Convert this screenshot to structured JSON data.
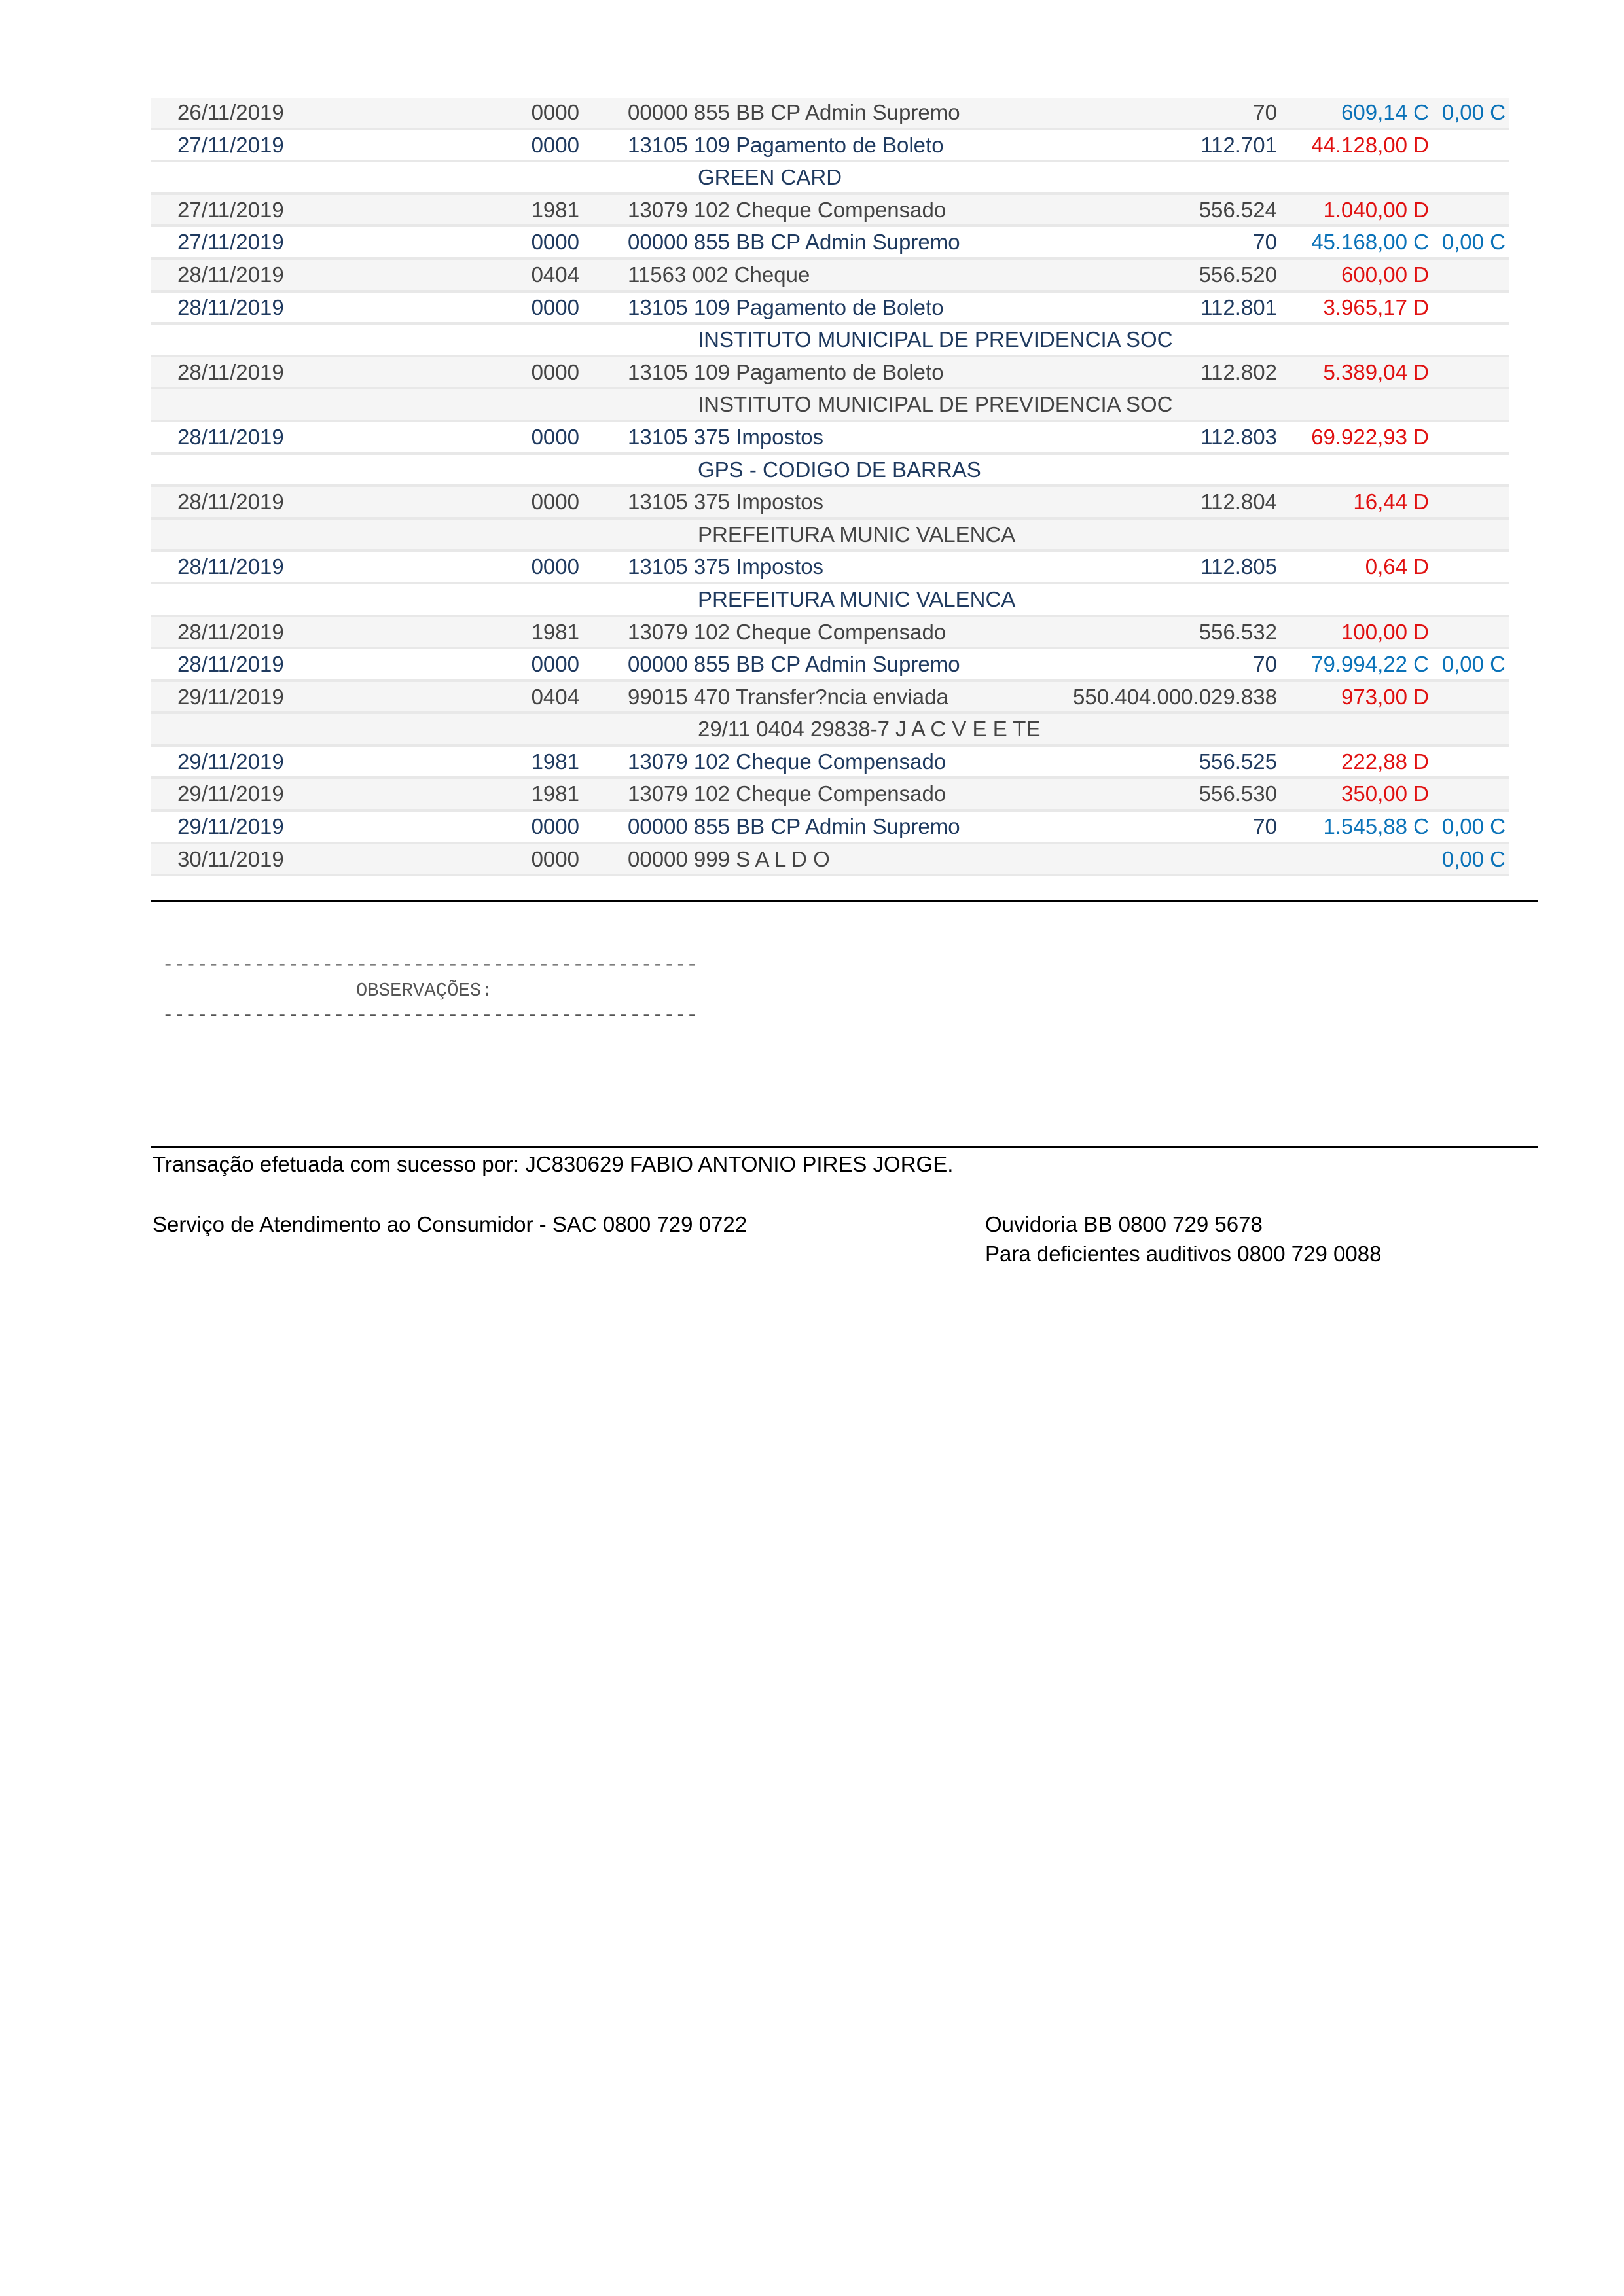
{
  "colors": {
    "debit": "#e01010",
    "credit": "#0a72b8",
    "text_navy": "#1f3a5f",
    "text_grey": "#444444"
  },
  "entries": [
    {
      "date": "26/11/2019",
      "doc": "0000",
      "history": "00000 855 BB CP Admin Supremo",
      "ref": "70",
      "amount": "609,14 C",
      "amount_type": "credit",
      "balance": "0,00 C",
      "sub": ""
    },
    {
      "date": "27/11/2019",
      "doc": "0000",
      "history": "13105 109 Pagamento de Boleto",
      "ref": "112.701",
      "amount": "44.128,00 D",
      "amount_type": "debit",
      "balance": "",
      "sub": "GREEN CARD"
    },
    {
      "date": "27/11/2019",
      "doc": "1981",
      "history": "13079 102 Cheque Compensado",
      "ref": "556.524",
      "amount": "1.040,00 D",
      "amount_type": "debit",
      "balance": "",
      "sub": ""
    },
    {
      "date": "27/11/2019",
      "doc": "0000",
      "history": "00000 855 BB CP Admin Supremo",
      "ref": "70",
      "amount": "45.168,00 C",
      "amount_type": "credit",
      "balance": "0,00 C",
      "sub": ""
    },
    {
      "date": "28/11/2019",
      "doc": "0404",
      "history": "11563 002 Cheque",
      "ref": "556.520",
      "amount": "600,00 D",
      "amount_type": "debit",
      "balance": "",
      "sub": ""
    },
    {
      "date": "28/11/2019",
      "doc": "0000",
      "history": "13105 109 Pagamento de Boleto",
      "ref": "112.801",
      "amount": "3.965,17 D",
      "amount_type": "debit",
      "balance": "",
      "sub": "INSTITUTO MUNICIPAL DE PREVIDENCIA SOC"
    },
    {
      "date": "28/11/2019",
      "doc": "0000",
      "history": "13105 109 Pagamento de Boleto",
      "ref": "112.802",
      "amount": "5.389,04 D",
      "amount_type": "debit",
      "balance": "",
      "sub": "INSTITUTO MUNICIPAL DE PREVIDENCIA SOC"
    },
    {
      "date": "28/11/2019",
      "doc": "0000",
      "history": "13105 375 Impostos",
      "ref": "112.803",
      "amount": "69.922,93 D",
      "amount_type": "debit",
      "balance": "",
      "sub": "GPS - CODIGO DE BARRAS"
    },
    {
      "date": "28/11/2019",
      "doc": "0000",
      "history": "13105 375 Impostos",
      "ref": "112.804",
      "amount": "16,44 D",
      "amount_type": "debit",
      "balance": "",
      "sub": "PREFEITURA MUNIC VALENCA"
    },
    {
      "date": "28/11/2019",
      "doc": "0000",
      "history": "13105 375 Impostos",
      "ref": "112.805",
      "amount": "0,64 D",
      "amount_type": "debit",
      "balance": "",
      "sub": "PREFEITURA MUNIC VALENCA"
    },
    {
      "date": "28/11/2019",
      "doc": "1981",
      "history": "13079 102 Cheque Compensado",
      "ref": "556.532",
      "amount": "100,00 D",
      "amount_type": "debit",
      "balance": "",
      "sub": ""
    },
    {
      "date": "28/11/2019",
      "doc": "0000",
      "history": "00000 855 BB CP Admin Supremo",
      "ref": "70",
      "amount": "79.994,22 C",
      "amount_type": "credit",
      "balance": "0,00 C",
      "sub": ""
    },
    {
      "date": "29/11/2019",
      "doc": "0404",
      "history": "99015 470 Transfer?ncia enviada",
      "ref": "550.404.000.029.838",
      "amount": "973,00 D",
      "amount_type": "debit",
      "balance": "",
      "sub": "29/11 0404 29838-7 J A C V E E TE"
    },
    {
      "date": "29/11/2019",
      "doc": "1981",
      "history": "13079 102 Cheque Compensado",
      "ref": "556.525",
      "amount": "222,88 D",
      "amount_type": "debit",
      "balance": "",
      "sub": ""
    },
    {
      "date": "29/11/2019",
      "doc": "1981",
      "history": "13079 102 Cheque Compensado",
      "ref": "556.530",
      "amount": "350,00 D",
      "amount_type": "debit",
      "balance": "",
      "sub": ""
    },
    {
      "date": "29/11/2019",
      "doc": "0000",
      "history": "00000 855 BB CP Admin Supremo",
      "ref": "70",
      "amount": "1.545,88 C",
      "amount_type": "credit",
      "balance": "0,00 C",
      "sub": ""
    },
    {
      "date": "30/11/2019",
      "doc": "0000",
      "history": "00000 999 S A L D O",
      "ref": "",
      "amount": "",
      "amount_type": "credit",
      "balance": "0,00 C",
      "sub": ""
    }
  ],
  "observations": {
    "dashes": "-----------------------------------------------",
    "label": "                 OBSERVAÇÕES:"
  },
  "footer": {
    "transaction": "Transação efetuada com sucesso por: JC830629 FABIO ANTONIO PIRES JORGE.",
    "sac": "Serviço de Atendimento ao Consumidor - SAC 0800 729 0722",
    "ouvidoria": "Ouvidoria BB 0800 729 5678",
    "auditivos": "Para deficientes auditivos 0800 729 0088"
  }
}
